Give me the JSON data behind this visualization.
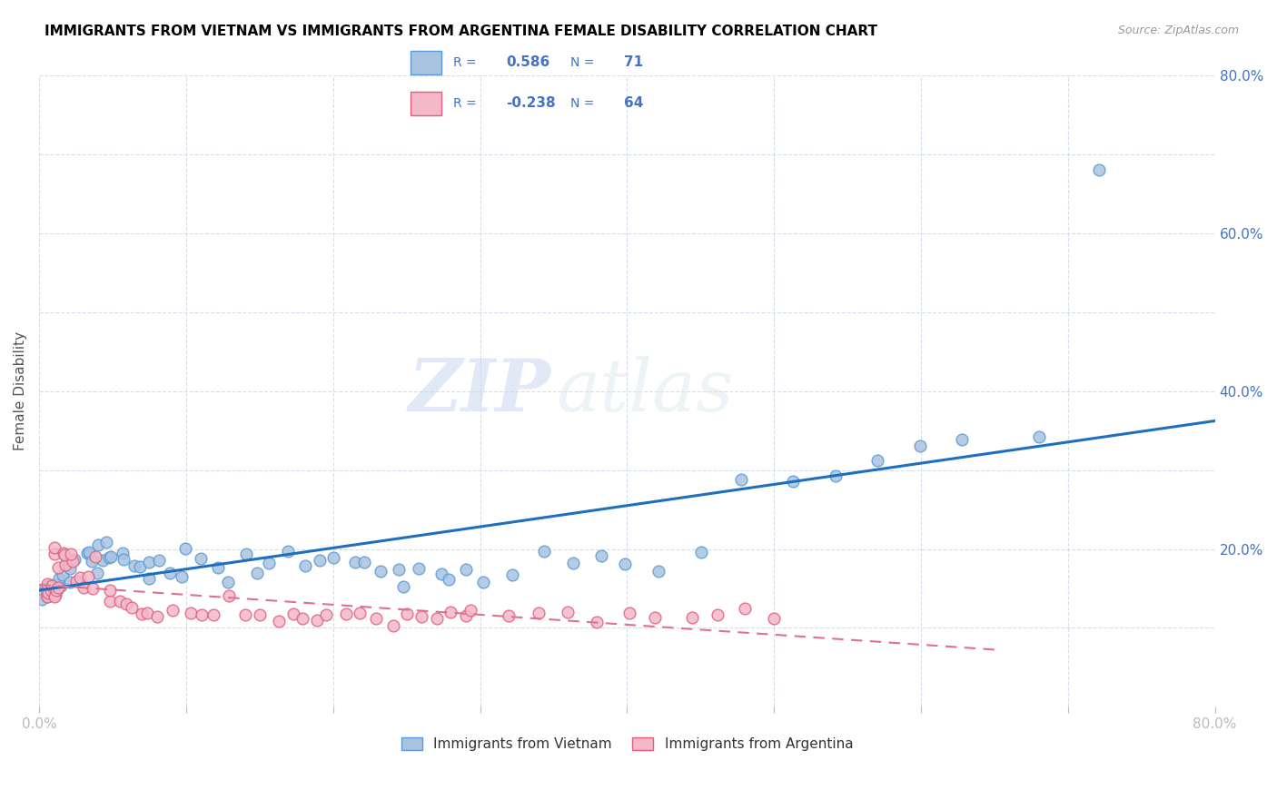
{
  "title": "IMMIGRANTS FROM VIETNAM VS IMMIGRANTS FROM ARGENTINA FEMALE DISABILITY CORRELATION CHART",
  "source": "Source: ZipAtlas.com",
  "ylabel": "Female Disability",
  "xlim": [
    0.0,
    0.8
  ],
  "ylim": [
    0.0,
    0.8
  ],
  "vietnam_color": "#a8c4e0",
  "vietnam_edge_color": "#5b9bd5",
  "argentina_color": "#f4b8c8",
  "argentina_edge_color": "#e06080",
  "line_vietnam_color": "#1f6fbf",
  "line_argentina_color": "#e07090",
  "R_vietnam": 0.586,
  "N_vietnam": 71,
  "R_argentina": -0.238,
  "N_argentina": 64,
  "watermark_zip": "ZIP",
  "watermark_atlas": "atlas",
  "legend_label_vietnam": "Immigrants from Vietnam",
  "legend_label_argentina": "Immigrants from Argentina",
  "vietnam_x": [
    0.004,
    0.005,
    0.006,
    0.007,
    0.008,
    0.009,
    0.01,
    0.011,
    0.012,
    0.013,
    0.015,
    0.016,
    0.018,
    0.02,
    0.022,
    0.025,
    0.028,
    0.03,
    0.032,
    0.035,
    0.038,
    0.04,
    0.042,
    0.045,
    0.048,
    0.05,
    0.055,
    0.06,
    0.065,
    0.07,
    0.075,
    0.08,
    0.085,
    0.09,
    0.095,
    0.1,
    0.11,
    0.12,
    0.13,
    0.14,
    0.15,
    0.16,
    0.17,
    0.18,
    0.19,
    0.2,
    0.21,
    0.22,
    0.23,
    0.24,
    0.25,
    0.26,
    0.27,
    0.28,
    0.29,
    0.3,
    0.32,
    0.34,
    0.36,
    0.38,
    0.4,
    0.42,
    0.45,
    0.48,
    0.51,
    0.54,
    0.57,
    0.6,
    0.63,
    0.68,
    0.72
  ],
  "vietnam_y": [
    0.14,
    0.15,
    0.155,
    0.16,
    0.145,
    0.15,
    0.14,
    0.155,
    0.16,
    0.15,
    0.165,
    0.16,
    0.155,
    0.19,
    0.18,
    0.19,
    0.2,
    0.185,
    0.195,
    0.18,
    0.175,
    0.185,
    0.2,
    0.19,
    0.205,
    0.195,
    0.2,
    0.185,
    0.18,
    0.175,
    0.17,
    0.18,
    0.175,
    0.17,
    0.165,
    0.2,
    0.195,
    0.175,
    0.165,
    0.195,
    0.165,
    0.185,
    0.195,
    0.175,
    0.185,
    0.195,
    0.185,
    0.175,
    0.18,
    0.175,
    0.155,
    0.175,
    0.165,
    0.155,
    0.175,
    0.155,
    0.165,
    0.195,
    0.185,
    0.195,
    0.185,
    0.175,
    0.195,
    0.285,
    0.285,
    0.295,
    0.305,
    0.325,
    0.34,
    0.345,
    0.68
  ],
  "argentina_x": [
    0.003,
    0.004,
    0.005,
    0.006,
    0.007,
    0.008,
    0.009,
    0.01,
    0.011,
    0.012,
    0.013,
    0.014,
    0.015,
    0.016,
    0.017,
    0.018,
    0.02,
    0.022,
    0.025,
    0.028,
    0.03,
    0.032,
    0.035,
    0.04,
    0.045,
    0.05,
    0.055,
    0.06,
    0.065,
    0.07,
    0.075,
    0.08,
    0.09,
    0.1,
    0.11,
    0.12,
    0.13,
    0.14,
    0.15,
    0.16,
    0.17,
    0.18,
    0.19,
    0.2,
    0.21,
    0.22,
    0.23,
    0.24,
    0.25,
    0.26,
    0.27,
    0.28,
    0.29,
    0.3,
    0.32,
    0.34,
    0.36,
    0.38,
    0.4,
    0.42,
    0.44,
    0.46,
    0.48,
    0.5
  ],
  "argentina_y": [
    0.14,
    0.15,
    0.145,
    0.155,
    0.145,
    0.14,
    0.155,
    0.145,
    0.15,
    0.145,
    0.19,
    0.2,
    0.18,
    0.195,
    0.185,
    0.195,
    0.185,
    0.195,
    0.155,
    0.17,
    0.155,
    0.17,
    0.155,
    0.19,
    0.14,
    0.145,
    0.135,
    0.13,
    0.125,
    0.12,
    0.115,
    0.115,
    0.12,
    0.12,
    0.115,
    0.115,
    0.14,
    0.12,
    0.115,
    0.11,
    0.115,
    0.12,
    0.115,
    0.115,
    0.11,
    0.115,
    0.115,
    0.11,
    0.115,
    0.115,
    0.11,
    0.12,
    0.115,
    0.11,
    0.115,
    0.12,
    0.12,
    0.11,
    0.115,
    0.115,
    0.11,
    0.115,
    0.12,
    0.11
  ]
}
